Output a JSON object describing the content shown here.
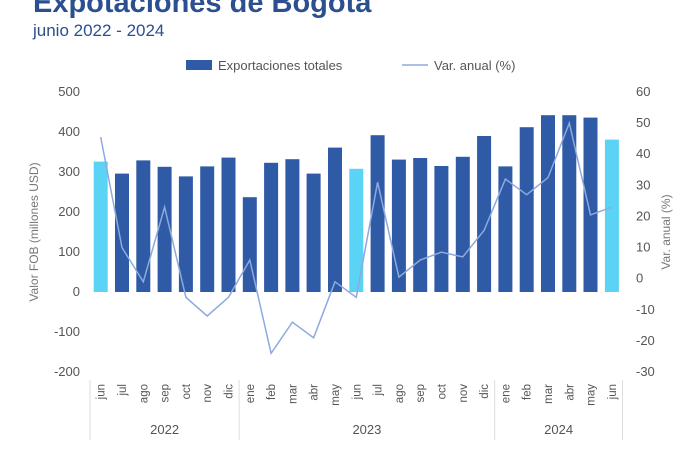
{
  "chart_data": {
    "type": "bar",
    "title": "Expotaciones de Bogota",
    "subtitle": "junio 2022 - 2024",
    "categories": [
      "jun",
      "jul",
      "ago",
      "sep",
      "oct",
      "nov",
      "dic",
      "ene",
      "feb",
      "mar",
      "abr",
      "may",
      "jun",
      "jul",
      "ago",
      "sep",
      "oct",
      "nov",
      "dic",
      "ene",
      "feb",
      "mar",
      "abr",
      "may",
      "jun"
    ],
    "years": [
      {
        "label": "2022",
        "start": 0,
        "end": 6
      },
      {
        "label": "2023",
        "start": 7,
        "end": 18
      },
      {
        "label": "2024",
        "start": 19,
        "end": 24
      }
    ],
    "highlight_indices": [
      0,
      12,
      24
    ],
    "series": [
      {
        "name": "Exportaciones totales",
        "type": "bar",
        "axis": "left",
        "values": [
          326,
          296,
          329,
          313,
          289,
          314,
          336,
          237,
          323,
          332,
          296,
          361,
          308,
          392,
          331,
          335,
          315,
          338,
          390,
          314,
          412,
          442,
          442,
          436,
          381
        ]
      },
      {
        "name": "Var. anual (%)",
        "type": "line",
        "axis": "right",
        "values": [
          45.5,
          10,
          -1,
          23,
          -6,
          -12,
          -6,
          6,
          -24,
          -14,
          -19,
          -1,
          -6,
          31,
          0.5,
          6,
          8.5,
          7,
          15.5,
          32,
          27,
          32.5,
          50,
          20.5,
          23
        ]
      }
    ],
    "ylabel": "Valor FOB (millones USD)",
    "y2label": "Var. anual (%)",
    "ylim": [
      -200,
      500
    ],
    "y2lim": [
      -30,
      60
    ],
    "yticks": [
      "500",
      "400",
      "300",
      "200",
      "100",
      "0",
      "-100",
      "-200"
    ],
    "y2ticks": [
      "60",
      "50",
      "40",
      "30",
      "20",
      "10",
      "0",
      "-10",
      "-20",
      "-30"
    ],
    "colors": {
      "bar": "#2f5aa6",
      "highlight": "#5bd3f5",
      "line": "#8ea9de",
      "title": "#2b4f8f"
    }
  }
}
